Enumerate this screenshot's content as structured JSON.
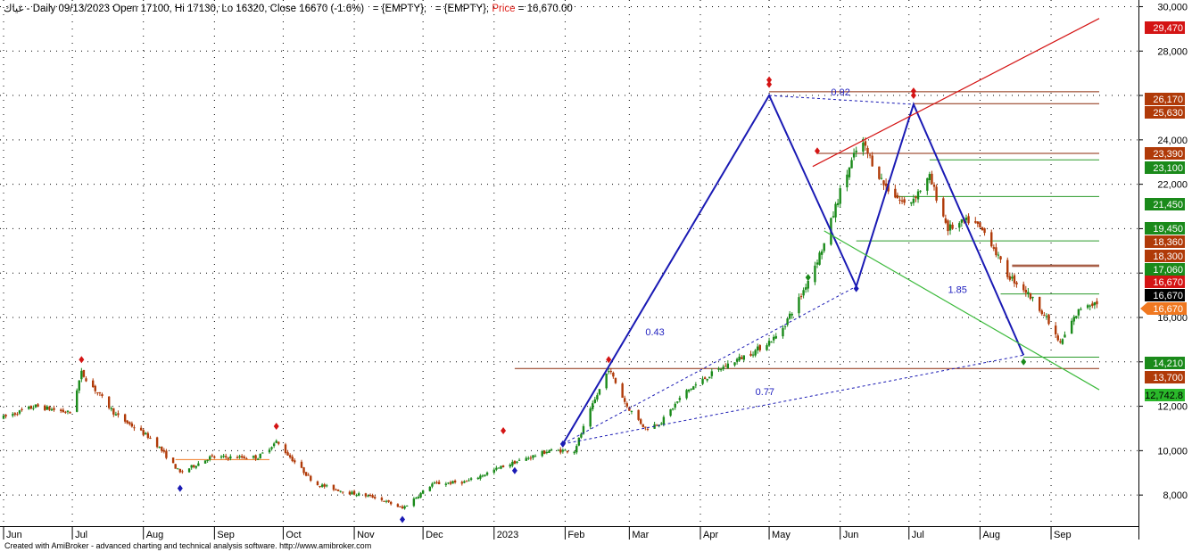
{
  "header": {
    "symbol": "غياك",
    "info": " - Daily 09/13/2023 Open 17100, Hi 17130, Lo 16320, Close 16670 (-1.6%)   = {EMPTY},   = {EMPTY}, ",
    "price_label": "Price",
    "price_value": " = 16,670.00"
  },
  "footer": "Created with AmiBroker - advanced charting and technical analysis software. http://www.amibroker.com",
  "colors": {
    "up": "#1a8a1a",
    "down": "#b03a08",
    "zigzag": "#1a1ab4",
    "trend_red": "#d41414",
    "trend_green": "#3cba3c",
    "level_brown": "#8b2a0a",
    "level_green": "#2a9a2a"
  },
  "chart_data": {
    "type": "candlestick",
    "y_axis": {
      "min": 6600,
      "max": 30300,
      "ticks": [
        8000,
        10000,
        12000,
        14000,
        16000,
        18000,
        20000,
        22000,
        24000,
        26000,
        28000,
        30000
      ],
      "labeled_ticks": [
        "8,000",
        "10,000",
        "12,000",
        "16,000",
        "22,000",
        "24,000",
        "28,000",
        "30,000"
      ]
    },
    "x_axis": {
      "labels": [
        "Jun",
        "Jul",
        "Aug",
        "Sep",
        "Oct",
        "Nov",
        "Dec",
        "2023",
        "Feb",
        "Mar",
        "Apr",
        "May",
        "Jun",
        "Jul",
        "Aug",
        "Sep"
      ],
      "start": "2022-06-01",
      "end": "2023-09-22"
    },
    "price_path": [
      [
        "2022-06-01",
        11500
      ],
      [
        "2022-06-15",
        12000
      ],
      [
        "2022-06-30",
        11700
      ],
      [
        "2022-07-05",
        13500
      ],
      [
        "2022-07-20",
        11600
      ],
      [
        "2022-08-05",
        10500
      ],
      [
        "2022-08-17",
        9000
      ],
      [
        "2022-08-30",
        9700
      ],
      [
        "2022-09-10",
        9700
      ],
      [
        "2022-09-20",
        9700
      ],
      [
        "2022-09-28",
        10400
      ],
      [
        "2022-10-05",
        9600
      ],
      [
        "2022-10-15",
        8500
      ],
      [
        "2022-10-30",
        8100
      ],
      [
        "2022-11-10",
        7900
      ],
      [
        "2022-11-22",
        7400
      ],
      [
        "2022-12-05",
        8500
      ],
      [
        "2022-12-20",
        8600
      ],
      [
        "2023-01-05",
        9300
      ],
      [
        "2023-01-25",
        10000
      ],
      [
        "2023-02-05",
        10000
      ],
      [
        "2023-02-12",
        11800
      ],
      [
        "2023-02-20",
        13700
      ],
      [
        "2023-02-28",
        12000
      ],
      [
        "2023-03-08",
        11000
      ],
      [
        "2023-03-15",
        11300
      ],
      [
        "2023-03-25",
        12600
      ],
      [
        "2023-04-05",
        13400
      ],
      [
        "2023-04-15",
        14000
      ],
      [
        "2023-04-25",
        14500
      ],
      [
        "2023-05-05",
        15200
      ],
      [
        "2023-05-15",
        17000
      ],
      [
        "2023-05-25",
        19300
      ],
      [
        "2023-06-02",
        22000
      ],
      [
        "2023-06-10",
        24000
      ],
      [
        "2023-06-20",
        22000
      ],
      [
        "2023-06-30",
        21000
      ],
      [
        "2023-07-10",
        22300
      ],
      [
        "2023-07-18",
        20000
      ],
      [
        "2023-07-28",
        20400
      ],
      [
        "2023-08-05",
        19600
      ],
      [
        "2023-08-12",
        18000
      ],
      [
        "2023-08-20",
        17300
      ],
      [
        "2023-08-28",
        16300
      ],
      [
        "2023-09-05",
        14800
      ],
      [
        "2023-09-10",
        15800
      ],
      [
        "2023-09-15",
        16600
      ],
      [
        "2023-09-22",
        16670
      ]
    ],
    "zigzag": [
      [
        "2023-01-31",
        10300
      ],
      [
        "2023-05-01",
        26000
      ],
      [
        "2023-06-08",
        17400
      ],
      [
        "2023-07-03",
        25600
      ],
      [
        "2023-08-20",
        14300
      ]
    ],
    "ratios": [
      "0.92",
      "0.43",
      "1.85",
      "0.77"
    ],
    "price_tags": [
      {
        "label": "29,470",
        "value": 29470,
        "bg": "#d41414",
        "fg": "#ffffff"
      },
      {
        "label": "26,170",
        "value": 26170,
        "bg": "#b03a08",
        "fg": "#ffffff"
      },
      {
        "label": "25,630",
        "value": 25630,
        "bg": "#b03a08",
        "fg": "#ffffff"
      },
      {
        "label": "23,390",
        "value": 23390,
        "bg": "#b03a08",
        "fg": "#ffffff"
      },
      {
        "label": "23,100",
        "value": 23100,
        "bg": "#1a8a1a",
        "fg": "#ffffff"
      },
      {
        "label": "21,450",
        "value": 21450,
        "bg": "#1a8a1a",
        "fg": "#ffffff"
      },
      {
        "label": "19,450",
        "value": 19450,
        "bg": "#1a8a1a",
        "fg": "#ffffff"
      },
      {
        "label": "18,360",
        "value": 18360,
        "bg": "#b03a08",
        "fg": "#ffffff"
      },
      {
        "label": "18,300",
        "value": 18300,
        "bg": "#b03a08",
        "fg": "#ffffff"
      },
      {
        "label": "17,060",
        "value": 17060,
        "bg": "#1a8a1a",
        "fg": "#ffffff"
      },
      {
        "label": "16,670",
        "value": 16670,
        "bg": "#d41414",
        "fg": "#ffffff"
      },
      {
        "label": "16,670",
        "value": 16670,
        "bg": "#000000",
        "fg": "#ffffff"
      },
      {
        "label": "16,670",
        "value": 16670,
        "bg": "#f07820",
        "fg": "#ffffff"
      },
      {
        "label": "14,210",
        "value": 14210,
        "bg": "#1a8a1a",
        "fg": "#ffffff"
      },
      {
        "label": "13,700",
        "value": 13700,
        "bg": "#b03a08",
        "fg": "#ffffff"
      },
      {
        "label": "12,742.8",
        "value": 12742.8,
        "bg": "#2ab82a",
        "fg": "#000000"
      }
    ]
  }
}
